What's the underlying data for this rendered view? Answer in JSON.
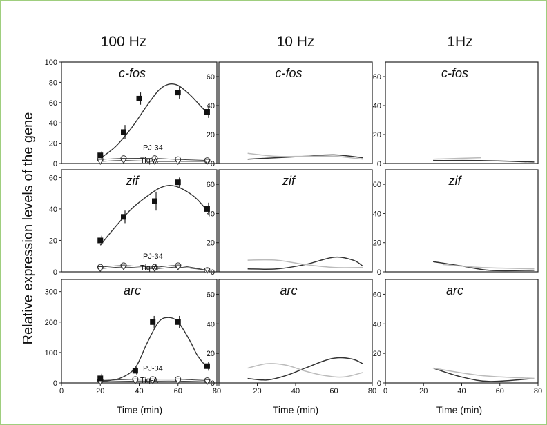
{
  "figure": {
    "ylabel": "Relative expression levels of the gene",
    "columns": [
      "100 Hz",
      "10 Hz",
      "1Hz"
    ],
    "xlabel": "Time (min)",
    "border_color": "#9fce7e"
  },
  "chart_data": [
    {
      "type": "line",
      "panel": "100 Hz / c-fos",
      "title": "c-fos",
      "xlim": [
        0,
        80
      ],
      "ylim": [
        0,
        100
      ],
      "xticks": [],
      "yticks": [
        0,
        20,
        40,
        60,
        80,
        100
      ],
      "points": {
        "x": [
          20,
          32,
          40,
          60,
          75
        ],
        "y": [
          8,
          31,
          64,
          70,
          51
        ],
        "err": [
          4,
          7,
          6,
          6,
          6
        ]
      },
      "fit": {
        "x": [
          20,
          28,
          36,
          44,
          50,
          55,
          60,
          66,
          70,
          75
        ],
        "y": [
          5,
          17,
          35,
          57,
          72,
          78,
          77,
          68,
          60,
          50
        ]
      },
      "inhibitors": {
        "labels": [
          "PJ-34",
          "Tiq-A"
        ],
        "circle": {
          "x": [
            20,
            32,
            48,
            60,
            75
          ],
          "y": [
            4,
            5,
            5,
            4,
            3
          ]
        },
        "triangle": {
          "x": [
            20,
            32,
            48,
            60,
            75
          ],
          "y": [
            2,
            3,
            2,
            2,
            2
          ]
        }
      }
    },
    {
      "type": "line",
      "panel": "10 Hz / c-fos",
      "title": "c-fos",
      "xlim": [
        0,
        80
      ],
      "ylim": [
        0,
        70
      ],
      "xticks": [],
      "yticks": [
        0,
        20,
        40,
        60
      ],
      "series": [
        {
          "name": "",
          "color": "#333333",
          "x": [
            15,
            30,
            45,
            60,
            75
          ],
          "y": [
            3,
            4,
            5,
            6,
            4
          ]
        },
        {
          "name": "",
          "color": "#bbbbbb",
          "x": [
            15,
            30,
            45,
            60,
            75
          ],
          "y": [
            7,
            5,
            5,
            5,
            3
          ]
        }
      ]
    },
    {
      "type": "line",
      "panel": "1Hz / c-fos",
      "title": "c-fos",
      "xlim": [
        0,
        80
      ],
      "ylim": [
        0,
        70
      ],
      "xticks": [],
      "yticks": [
        0,
        20,
        40,
        60
      ],
      "series": [
        {
          "name": "",
          "color": "#333333",
          "x": [
            25,
            50,
            78
          ],
          "y": [
            2,
            2,
            1
          ]
        },
        {
          "name": "",
          "color": "#bbbbbb",
          "x": [
            25,
            50
          ],
          "y": [
            3,
            4
          ]
        }
      ]
    },
    {
      "type": "line",
      "panel": "100 Hz / zif",
      "title": "zif",
      "xlim": [
        0,
        80
      ],
      "ylim": [
        0,
        65
      ],
      "xticks": [],
      "yticks": [
        0,
        20,
        40,
        60
      ],
      "points": {
        "x": [
          20,
          32,
          48,
          60,
          75
        ],
        "y": [
          20,
          35,
          45,
          57,
          40
        ],
        "err": [
          3,
          4,
          6,
          3,
          4
        ]
      },
      "fit": {
        "x": [
          20,
          28,
          36,
          44,
          50,
          55,
          60,
          66,
          70,
          75
        ],
        "y": [
          17,
          29,
          40,
          48,
          53,
          55,
          54,
          50,
          46,
          39
        ]
      },
      "inhibitors": {
        "labels": [
          "PJ-34",
          "Tiq-A"
        ],
        "circle": {
          "x": [
            20,
            32,
            48,
            60,
            75
          ],
          "y": [
            3,
            4,
            3,
            4,
            1
          ]
        },
        "triangle": {
          "x": [
            20,
            32,
            48,
            60,
            75
          ],
          "y": [
            2,
            3,
            2,
            3,
            1
          ]
        }
      }
    },
    {
      "type": "line",
      "panel": "10 Hz / zif",
      "title": "zif",
      "xlim": [
        0,
        80
      ],
      "ylim": [
        0,
        70
      ],
      "xticks": [],
      "yticks": [
        0,
        20,
        40,
        60
      ],
      "series": [
        {
          "name": "",
          "color": "#333333",
          "x": [
            15,
            30,
            45,
            60,
            70,
            75
          ],
          "y": [
            2,
            2,
            5,
            10,
            8,
            4
          ]
        },
        {
          "name": "",
          "color": "#bbbbbb",
          "x": [
            15,
            30,
            45,
            60,
            75
          ],
          "y": [
            8,
            8,
            5,
            3,
            3
          ]
        }
      ]
    },
    {
      "type": "line",
      "panel": "1Hz / zif",
      "title": "zif",
      "xlim": [
        0,
        80
      ],
      "ylim": [
        0,
        70
      ],
      "xticks": [],
      "yticks": [
        0,
        20,
        40,
        60
      ],
      "series": [
        {
          "name": "",
          "color": "#333333",
          "x": [
            25,
            40,
            55,
            78
          ],
          "y": [
            7,
            4,
            1,
            1
          ]
        },
        {
          "name": "",
          "color": "#bbbbbb",
          "x": [
            30,
            50,
            78
          ],
          "y": [
            5,
            3,
            2
          ]
        }
      ]
    },
    {
      "type": "line",
      "panel": "100 Hz / arc",
      "title": "arc",
      "xlim": [
        0,
        80
      ],
      "ylim": [
        0,
        340
      ],
      "xticks": [
        0,
        20,
        40,
        60,
        80
      ],
      "yticks": [
        0,
        100,
        200,
        300
      ],
      "points": {
        "x": [
          20,
          38,
          47,
          60,
          75
        ],
        "y": [
          15,
          40,
          200,
          200,
          55
        ],
        "err": [
          15,
          12,
          20,
          20,
          15
        ]
      },
      "fit": {
        "x": [
          20,
          30,
          38,
          44,
          50,
          55,
          60,
          66,
          70,
          75
        ],
        "y": [
          5,
          15,
          50,
          130,
          200,
          215,
          200,
          140,
          90,
          50
        ]
      },
      "inhibitors": {
        "labels": [
          "PJ-34",
          "Tiq-A"
        ],
        "circle": {
          "x": [
            20,
            38,
            47,
            60,
            75
          ],
          "y": [
            8,
            12,
            12,
            12,
            8
          ]
        },
        "triangle": {
          "x": [
            20,
            38,
            47,
            60,
            75
          ],
          "y": [
            4,
            6,
            6,
            6,
            4
          ]
        }
      }
    },
    {
      "type": "line",
      "panel": "10 Hz / arc",
      "title": "arc",
      "xlim": [
        0,
        80
      ],
      "ylim": [
        0,
        70
      ],
      "xticks": [
        0,
        20,
        40,
        60,
        80
      ],
      "yticks": [
        0,
        20,
        40,
        60
      ],
      "series": [
        {
          "name": "",
          "color": "#333333",
          "x": [
            15,
            25,
            35,
            45,
            55,
            62,
            70,
            75
          ],
          "y": [
            3,
            2,
            5,
            10,
            15,
            17,
            16,
            13
          ]
        },
        {
          "name": "",
          "color": "#bbbbbb",
          "x": [
            15,
            25,
            35,
            45,
            55,
            65,
            75
          ],
          "y": [
            10,
            13,
            12,
            8,
            5,
            4,
            7
          ]
        }
      ]
    },
    {
      "type": "line",
      "panel": "1Hz / arc",
      "title": "arc",
      "xlim": [
        0,
        80
      ],
      "ylim": [
        0,
        70
      ],
      "xticks": [
        0,
        20,
        40,
        60,
        80
      ],
      "yticks": [
        0,
        20,
        40,
        60
      ],
      "series": [
        {
          "name": "",
          "color": "#333333",
          "x": [
            25,
            40,
            55,
            78
          ],
          "y": [
            10,
            4,
            1,
            3
          ]
        },
        {
          "name": "",
          "color": "#bbbbbb",
          "x": [
            25,
            50,
            78
          ],
          "y": [
            10,
            5,
            3
          ]
        }
      ]
    }
  ]
}
